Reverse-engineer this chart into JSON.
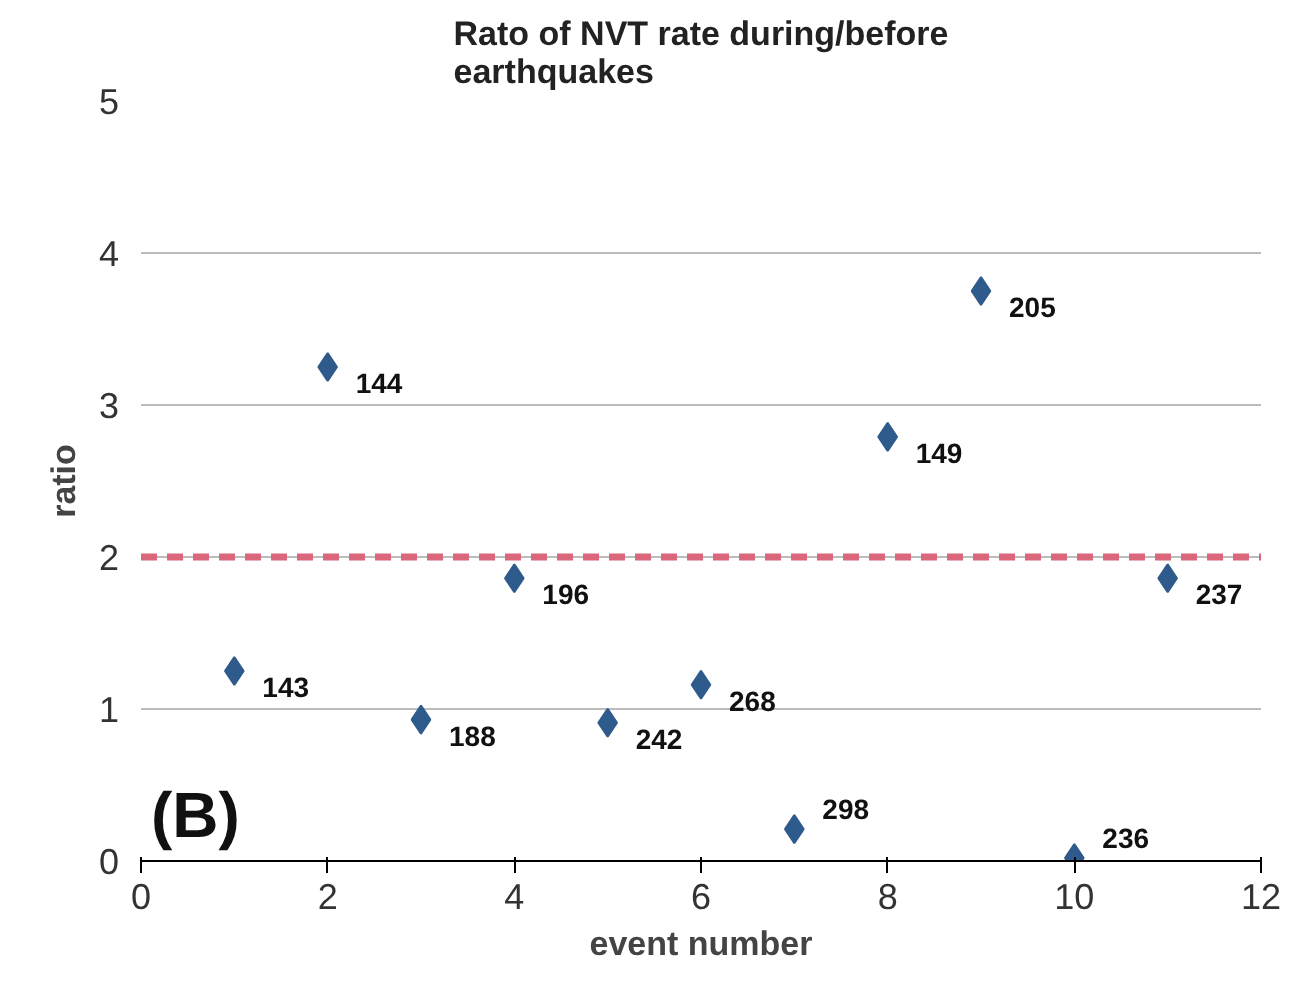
{
  "chart_data": {
    "type": "scatter",
    "title": "Rato of NVT rate during/before\nearthquakes",
    "xlabel": "event number",
    "ylabel": "ratio",
    "x": [
      1,
      2,
      3,
      4,
      5,
      6,
      7,
      8,
      9,
      10,
      11
    ],
    "series": [
      {
        "color": "#2f5b8c",
        "values": [
          1.25,
          3.25,
          0.93,
          1.86,
          0.91,
          1.16,
          0.21,
          2.79,
          3.75,
          0.02,
          1.86
        ]
      }
    ],
    "marker": "diamond",
    "xlim": [
      0,
      12
    ],
    "xticks": [
      0,
      2,
      4,
      6,
      8,
      10,
      12
    ],
    "ylim": [
      0,
      5
    ],
    "yticks": [
      0,
      1,
      2,
      3,
      4,
      5
    ],
    "grid": "y",
    "ref_lines": [
      {
        "axis": "y",
        "value": 2,
        "color": "#d9667a",
        "line_style": "dashed"
      }
    ],
    "annotations": [
      {
        "text": "143",
        "x": 1,
        "y": 1.25
      },
      {
        "text": "144",
        "x": 2,
        "y": 3.25
      },
      {
        "text": "188",
        "x": 3,
        "y": 0.93
      },
      {
        "text": "196",
        "x": 4,
        "y": 1.86
      },
      {
        "text": "242",
        "x": 5,
        "y": 0.91
      },
      {
        "text": "268",
        "x": 6,
        "y": 1.16
      },
      {
        "text": "298",
        "x": 7,
        "y": 0.21
      },
      {
        "text": "149",
        "x": 8,
        "y": 2.79
      },
      {
        "text": "205",
        "x": 9,
        "y": 3.75
      },
      {
        "text": "236",
        "x": 10,
        "y": 0.02
      },
      {
        "text": "237",
        "x": 11,
        "y": 1.86
      },
      "(B)"
    ]
  }
}
